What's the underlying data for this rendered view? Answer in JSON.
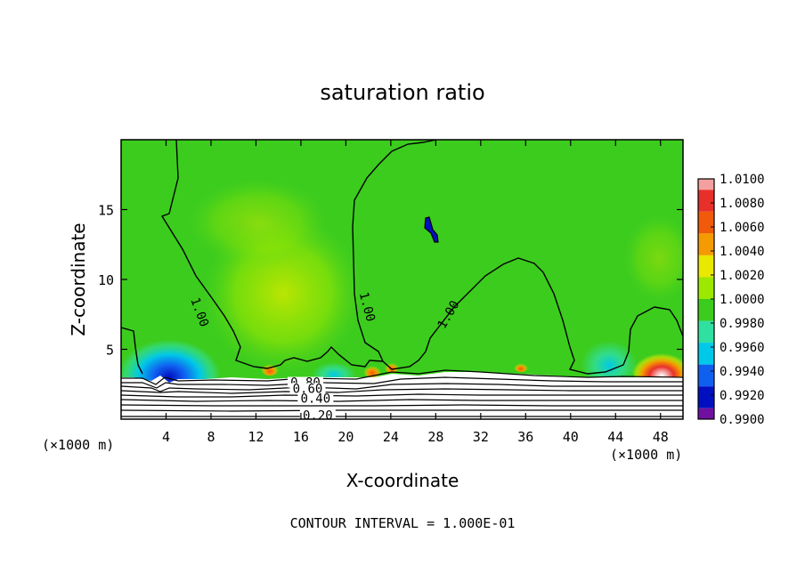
{
  "chart_data": {
    "type": "heatmap",
    "title": "saturation ratio",
    "xlabel": "X-coordinate",
    "ylabel": "Z-coordinate",
    "x_unit_left": "(×1000 m)",
    "x_unit_right": "(×1000 m)",
    "xlim": [
      0,
      50
    ],
    "ylim": [
      0,
      20
    ],
    "x_ticks": [
      4,
      8,
      12,
      16,
      20,
      24,
      28,
      32,
      36,
      40,
      44,
      48
    ],
    "y_ticks": [
      5,
      10,
      15
    ],
    "footer": "CONTOUR INTERVAL = 1.000E-01",
    "colorbar": {
      "labels": [
        "1.0100",
        "1.0080",
        "1.0060",
        "1.0040",
        "1.0020",
        "1.0000",
        "0.9980",
        "0.9960",
        "0.9940",
        "0.9920",
        "0.9900"
      ],
      "colors": [
        "#f4a0a0",
        "#e8302a",
        "#f05a0a",
        "#f59a00",
        "#e8e800",
        "#9ce800",
        "#3ccc1e",
        "#30e0a0",
        "#00c8e8",
        "#1060f0",
        "#0010c0",
        "#7010a0"
      ]
    },
    "contour_labels": [
      {
        "text": "1.00",
        "x": 6.8,
        "z": 7.6
      },
      {
        "text": "1.00",
        "x": 21.7,
        "z": 8.0
      },
      {
        "text": "1.00",
        "x": 29.3,
        "z": 7.4
      },
      {
        "text": "0.80",
        "x": 16.4,
        "z": 2.45
      },
      {
        "text": "0.60",
        "x": 16.6,
        "z": 2.0
      },
      {
        "text": "0.40",
        "x": 17.3,
        "z": 1.3
      },
      {
        "text": "0.20",
        "x": 17.5,
        "z": 0.1
      }
    ]
  }
}
